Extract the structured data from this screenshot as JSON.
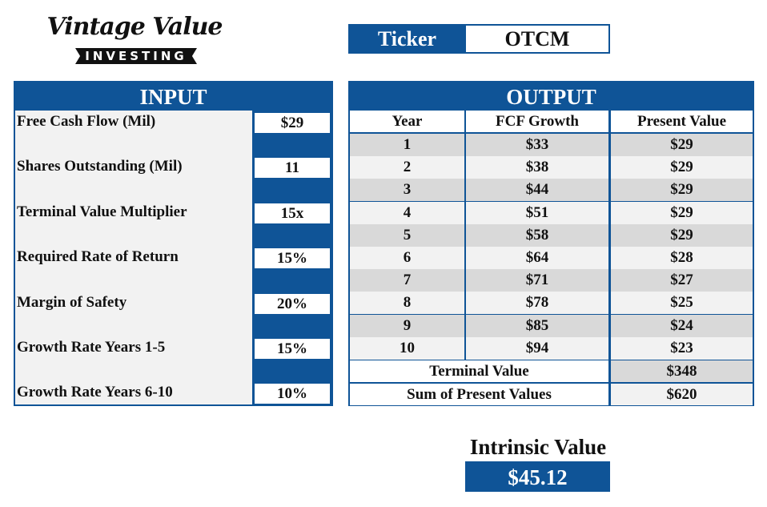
{
  "logo": {
    "script": "Vintage Value",
    "band": "INVESTING"
  },
  "ticker": {
    "label": "Ticker",
    "value": "OTCM"
  },
  "input": {
    "title": "INPUT",
    "items": [
      {
        "label": "Free Cash Flow (Mil)",
        "value": "$29"
      },
      {
        "label": "Shares Outstanding (Mil)",
        "value": "11"
      },
      {
        "label": "Terminal Value Multiplier",
        "value": "15x"
      },
      {
        "label": "Required Rate of Return",
        "value": "15%"
      },
      {
        "label": "Margin of Safety",
        "value": "20%"
      },
      {
        "label": "Growth Rate Years 1-5",
        "value": "15%"
      },
      {
        "label": "Growth Rate Years 6-10",
        "value": "10%"
      }
    ]
  },
  "output": {
    "title": "OUTPUT",
    "columns": [
      "Year",
      "FCF Growth",
      "Present Value"
    ],
    "rows": [
      [
        "1",
        "$33",
        "$29"
      ],
      [
        "2",
        "$38",
        "$29"
      ],
      [
        "3",
        "$44",
        "$29"
      ],
      [
        "4",
        "$51",
        "$29"
      ],
      [
        "5",
        "$58",
        "$29"
      ],
      [
        "6",
        "$64",
        "$28"
      ],
      [
        "7",
        "$71",
        "$27"
      ],
      [
        "8",
        "$78",
        "$25"
      ],
      [
        "9",
        "$85",
        "$24"
      ],
      [
        "10",
        "$94",
        "$23"
      ]
    ],
    "terminal_label": "Terminal Value",
    "terminal_value": "$348",
    "sum_label": "Sum of Present Values",
    "sum_value": "$620"
  },
  "intrinsic": {
    "label": "Intrinsic Value",
    "value": "$45.12"
  },
  "colors": {
    "brand": "#0f5497",
    "row_dark": "#d9d9d9",
    "row_light": "#f2f2f2"
  }
}
